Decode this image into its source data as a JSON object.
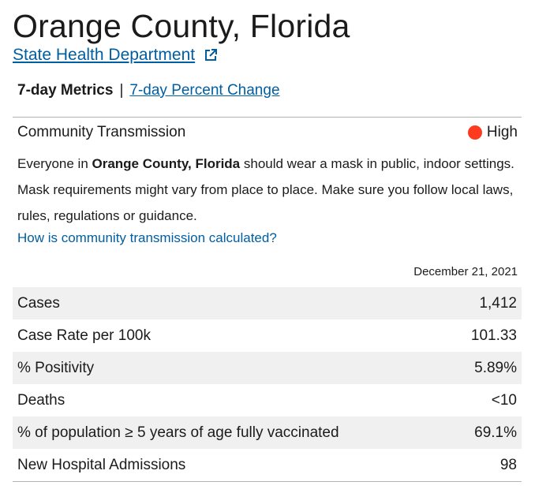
{
  "header": {
    "title": "Orange County, Florida",
    "health_link": "State Health Department",
    "health_link_icon": "external-link-icon"
  },
  "tabs": {
    "active": "7-day Metrics",
    "separator": "|",
    "other": "7-day Percent Change"
  },
  "transmission": {
    "label": "Community Transmission",
    "level": "High",
    "level_color": "#ff3b1f",
    "guidance_pre": "Everyone in ",
    "guidance_county": "Orange County, Florida",
    "guidance_post": " should wear a mask in public, indoor settings. Mask requirements might vary from place to place. Make sure you follow local laws, rules, regulations or guidance.",
    "calc_link": "How is community transmission calculated?"
  },
  "metrics": {
    "date": "December 21, 2021",
    "rows": [
      {
        "label": "Cases",
        "value": "1,412"
      },
      {
        "label": "Case Rate per 100k",
        "value": "101.33"
      },
      {
        "label": "% Positivity",
        "value": "5.89%"
      },
      {
        "label": "Deaths",
        "value": "<10"
      },
      {
        "label": "% of population ≥ 5 years of age fully vaccinated",
        "value": "69.1%"
      },
      {
        "label": "New Hospital Admissions",
        "value": "98"
      }
    ]
  },
  "colors": {
    "link": "#005ea2",
    "row_shade": "#f0f0f0",
    "divider": "#b3b3b3"
  }
}
